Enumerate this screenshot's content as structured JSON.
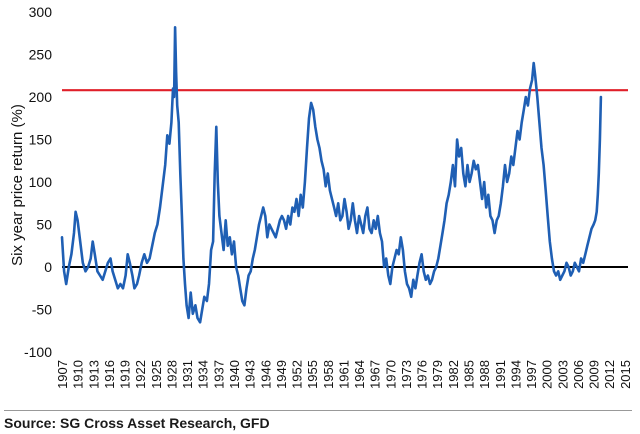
{
  "source": "Source: SG Cross Asset Research, GFD",
  "chart_data": {
    "type": "line",
    "title": "",
    "xlabel": "",
    "ylabel": "Six year price return (%)",
    "ylim": [
      -100,
      300
    ],
    "xlim": [
      1907,
      2015.6
    ],
    "yticks": [
      300,
      250,
      200,
      150,
      100,
      50,
      0,
      -50,
      -100
    ],
    "xticks": [
      "1907",
      "1910",
      "1913",
      "1916",
      "1919",
      "1922",
      "1925",
      "1928",
      "1931",
      "1934",
      "1937",
      "1940",
      "1943",
      "1946",
      "1949",
      "1952",
      "1955",
      "1958",
      "1961",
      "1964",
      "1967",
      "1970",
      "1973",
      "1976",
      "1979",
      "1982",
      "1985",
      "1988",
      "1991",
      "1994",
      "1997",
      "2000",
      "2003",
      "2006",
      "2009",
      "2012",
      "2015"
    ],
    "reference_lines": [
      {
        "axis": "y",
        "value": 0,
        "color": "#000000"
      },
      {
        "axis": "y",
        "value": 208,
        "color": "#e0202a"
      }
    ],
    "series": [
      {
        "color": "#1f5fb4",
        "points": [
          [
            1907.0,
            35
          ],
          [
            1907.4,
            -5
          ],
          [
            1907.8,
            -20
          ],
          [
            1908.3,
            0
          ],
          [
            1908.8,
            15
          ],
          [
            1909.3,
            40
          ],
          [
            1909.6,
            65
          ],
          [
            1910.0,
            55
          ],
          [
            1910.5,
            30
          ],
          [
            1911.0,
            5
          ],
          [
            1911.5,
            -5
          ],
          [
            1912.0,
            0
          ],
          [
            1912.5,
            10
          ],
          [
            1912.9,
            30
          ],
          [
            1913.3,
            15
          ],
          [
            1913.8,
            -5
          ],
          [
            1914.3,
            -10
          ],
          [
            1914.8,
            -15
          ],
          [
            1915.3,
            -5
          ],
          [
            1915.8,
            5
          ],
          [
            1916.3,
            10
          ],
          [
            1916.7,
            -5
          ],
          [
            1917.2,
            -15
          ],
          [
            1917.7,
            -25
          ],
          [
            1918.2,
            -20
          ],
          [
            1918.7,
            -25
          ],
          [
            1919.2,
            -10
          ],
          [
            1919.6,
            15
          ],
          [
            1920.0,
            5
          ],
          [
            1920.5,
            -10
          ],
          [
            1920.9,
            -25
          ],
          [
            1921.4,
            -20
          ],
          [
            1921.8,
            -10
          ],
          [
            1922.3,
            5
          ],
          [
            1922.8,
            15
          ],
          [
            1923.3,
            5
          ],
          [
            1923.8,
            10
          ],
          [
            1924.3,
            25
          ],
          [
            1924.8,
            40
          ],
          [
            1925.3,
            50
          ],
          [
            1925.8,
            70
          ],
          [
            1926.3,
            95
          ],
          [
            1926.8,
            120
          ],
          [
            1927.2,
            155
          ],
          [
            1927.6,
            145
          ],
          [
            1928.0,
            170
          ],
          [
            1928.3,
            210
          ],
          [
            1928.5,
            200
          ],
          [
            1928.7,
            282
          ],
          [
            1928.9,
            230
          ],
          [
            1929.1,
            190
          ],
          [
            1929.4,
            170
          ],
          [
            1929.7,
            110
          ],
          [
            1930.0,
            60
          ],
          [
            1930.3,
            10
          ],
          [
            1930.6,
            -20
          ],
          [
            1930.9,
            -45
          ],
          [
            1931.3,
            -60
          ],
          [
            1931.7,
            -30
          ],
          [
            1932.1,
            -55
          ],
          [
            1932.6,
            -45
          ],
          [
            1933.0,
            -60
          ],
          [
            1933.5,
            -65
          ],
          [
            1933.9,
            -50
          ],
          [
            1934.3,
            -35
          ],
          [
            1934.8,
            -40
          ],
          [
            1935.2,
            -20
          ],
          [
            1935.6,
            20
          ],
          [
            1936.0,
            30
          ],
          [
            1936.3,
            110
          ],
          [
            1936.6,
            165
          ],
          [
            1936.9,
            100
          ],
          [
            1937.2,
            60
          ],
          [
            1937.6,
            40
          ],
          [
            1938.0,
            20
          ],
          [
            1938.4,
            55
          ],
          [
            1938.8,
            25
          ],
          [
            1939.2,
            35
          ],
          [
            1939.6,
            15
          ],
          [
            1940.0,
            30
          ],
          [
            1940.4,
            0
          ],
          [
            1940.8,
            -10
          ],
          [
            1941.2,
            -25
          ],
          [
            1941.6,
            -40
          ],
          [
            1942.0,
            -45
          ],
          [
            1942.4,
            -25
          ],
          [
            1942.8,
            -10
          ],
          [
            1943.2,
            -5
          ],
          [
            1943.6,
            10
          ],
          [
            1944.0,
            20
          ],
          [
            1944.4,
            35
          ],
          [
            1944.8,
            50
          ],
          [
            1945.2,
            60
          ],
          [
            1945.6,
            70
          ],
          [
            1946.0,
            60
          ],
          [
            1946.4,
            35
          ],
          [
            1946.8,
            50
          ],
          [
            1947.2,
            45
          ],
          [
            1947.6,
            40
          ],
          [
            1948.0,
            35
          ],
          [
            1948.4,
            45
          ],
          [
            1948.8,
            55
          ],
          [
            1949.2,
            60
          ],
          [
            1949.6,
            55
          ],
          [
            1950.0,
            45
          ],
          [
            1950.4,
            60
          ],
          [
            1950.8,
            50
          ],
          [
            1951.2,
            70
          ],
          [
            1951.6,
            65
          ],
          [
            1952.0,
            80
          ],
          [
            1952.4,
            60
          ],
          [
            1952.8,
            85
          ],
          [
            1953.2,
            70
          ],
          [
            1953.6,
            100
          ],
          [
            1954.0,
            140
          ],
          [
            1954.4,
            175
          ],
          [
            1954.8,
            193
          ],
          [
            1955.2,
            185
          ],
          [
            1955.6,
            165
          ],
          [
            1956.0,
            150
          ],
          [
            1956.4,
            140
          ],
          [
            1956.8,
            125
          ],
          [
            1957.2,
            115
          ],
          [
            1957.6,
            95
          ],
          [
            1958.0,
            110
          ],
          [
            1958.4,
            90
          ],
          [
            1958.8,
            80
          ],
          [
            1959.2,
            70
          ],
          [
            1959.6,
            60
          ],
          [
            1960.0,
            75
          ],
          [
            1960.4,
            55
          ],
          [
            1960.8,
            60
          ],
          [
            1961.2,
            80
          ],
          [
            1961.6,
            65
          ],
          [
            1962.0,
            45
          ],
          [
            1962.4,
            55
          ],
          [
            1962.8,
            75
          ],
          [
            1963.2,
            55
          ],
          [
            1963.6,
            40
          ],
          [
            1964.0,
            60
          ],
          [
            1964.4,
            50
          ],
          [
            1964.8,
            40
          ],
          [
            1965.2,
            60
          ],
          [
            1965.6,
            70
          ],
          [
            1966.0,
            45
          ],
          [
            1966.4,
            40
          ],
          [
            1966.8,
            55
          ],
          [
            1967.2,
            45
          ],
          [
            1967.6,
            60
          ],
          [
            1968.0,
            40
          ],
          [
            1968.4,
            30
          ],
          [
            1968.8,
            0
          ],
          [
            1969.2,
            10
          ],
          [
            1969.6,
            -10
          ],
          [
            1970.0,
            -20
          ],
          [
            1970.4,
            0
          ],
          [
            1970.8,
            10
          ],
          [
            1971.2,
            20
          ],
          [
            1971.6,
            15
          ],
          [
            1972.0,
            35
          ],
          [
            1972.4,
            20
          ],
          [
            1972.8,
            -5
          ],
          [
            1973.2,
            -20
          ],
          [
            1973.6,
            -25
          ],
          [
            1974.0,
            -35
          ],
          [
            1974.4,
            -15
          ],
          [
            1974.8,
            -25
          ],
          [
            1975.2,
            -10
          ],
          [
            1975.6,
            5
          ],
          [
            1976.0,
            15
          ],
          [
            1976.4,
            -5
          ],
          [
            1976.8,
            -15
          ],
          [
            1977.2,
            -10
          ],
          [
            1977.6,
            -20
          ],
          [
            1978.0,
            -15
          ],
          [
            1978.4,
            -5
          ],
          [
            1978.8,
            0
          ],
          [
            1979.2,
            10
          ],
          [
            1979.6,
            25
          ],
          [
            1980.0,
            40
          ],
          [
            1980.4,
            55
          ],
          [
            1980.8,
            75
          ],
          [
            1981.2,
            85
          ],
          [
            1981.6,
            100
          ],
          [
            1982.0,
            120
          ],
          [
            1982.4,
            95
          ],
          [
            1982.8,
            150
          ],
          [
            1983.2,
            130
          ],
          [
            1983.6,
            140
          ],
          [
            1984.0,
            110
          ],
          [
            1984.4,
            95
          ],
          [
            1984.8,
            120
          ],
          [
            1985.2,
            100
          ],
          [
            1985.6,
            110
          ],
          [
            1986.0,
            125
          ],
          [
            1986.4,
            115
          ],
          [
            1986.8,
            120
          ],
          [
            1987.2,
            100
          ],
          [
            1987.6,
            80
          ],
          [
            1988.0,
            100
          ],
          [
            1988.4,
            70
          ],
          [
            1988.8,
            85
          ],
          [
            1989.2,
            60
          ],
          [
            1989.6,
            55
          ],
          [
            1990.0,
            40
          ],
          [
            1990.4,
            55
          ],
          [
            1990.8,
            60
          ],
          [
            1991.2,
            75
          ],
          [
            1991.6,
            95
          ],
          [
            1992.0,
            120
          ],
          [
            1992.4,
            100
          ],
          [
            1992.8,
            110
          ],
          [
            1993.2,
            130
          ],
          [
            1993.6,
            120
          ],
          [
            1994.0,
            140
          ],
          [
            1994.4,
            160
          ],
          [
            1994.8,
            150
          ],
          [
            1995.2,
            170
          ],
          [
            1995.6,
            185
          ],
          [
            1996.0,
            200
          ],
          [
            1996.4,
            190
          ],
          [
            1996.8,
            210
          ],
          [
            1997.2,
            220
          ],
          [
            1997.5,
            240
          ],
          [
            1997.8,
            225
          ],
          [
            1998.2,
            200
          ],
          [
            1998.6,
            170
          ],
          [
            1999.0,
            140
          ],
          [
            1999.4,
            120
          ],
          [
            1999.8,
            90
          ],
          [
            2000.2,
            60
          ],
          [
            2000.6,
            30
          ],
          [
            2001.0,
            10
          ],
          [
            2001.4,
            -5
          ],
          [
            2001.8,
            -10
          ],
          [
            2002.2,
            -5
          ],
          [
            2002.6,
            -15
          ],
          [
            2003.0,
            -10
          ],
          [
            2003.4,
            -5
          ],
          [
            2003.8,
            5
          ],
          [
            2004.2,
            0
          ],
          [
            2004.6,
            -10
          ],
          [
            2005.0,
            -5
          ],
          [
            2005.4,
            5
          ],
          [
            2005.8,
            0
          ],
          [
            2006.2,
            -5
          ],
          [
            2006.6,
            10
          ],
          [
            2007.0,
            5
          ],
          [
            2007.4,
            15
          ],
          [
            2007.8,
            25
          ],
          [
            2008.2,
            35
          ],
          [
            2008.6,
            45
          ],
          [
            2009.0,
            50
          ],
          [
            2009.3,
            55
          ],
          [
            2009.6,
            65
          ],
          [
            2009.8,
            85
          ],
          [
            2010.0,
            110
          ],
          [
            2010.2,
            150
          ],
          [
            2010.4,
            200
          ]
        ]
      }
    ]
  }
}
